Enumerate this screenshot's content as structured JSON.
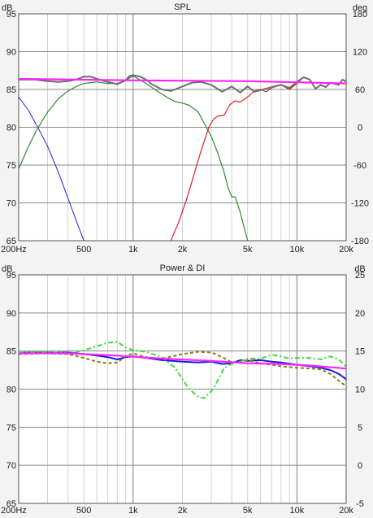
{
  "chart_data": [
    {
      "type": "line",
      "title": "SPL",
      "y_unit_left": "dB",
      "y_unit_right": "deg",
      "x_scale": "log",
      "xlim": [
        200,
        20000
      ],
      "ylim": [
        65,
        95
      ],
      "y2lim": [
        -180,
        180
      ],
      "x_tick_labels": [
        {
          "value": 200,
          "label": "200Hz"
        },
        {
          "value": 500,
          "label": "500"
        },
        {
          "value": 1000,
          "label": "1k"
        },
        {
          "value": 2000,
          "label": "2k"
        },
        {
          "value": 5000,
          "label": "5k"
        },
        {
          "value": 10000,
          "label": "10k"
        },
        {
          "value": 20000,
          "label": "20k"
        }
      ],
      "y_ticks": [
        95,
        90,
        85,
        80,
        75,
        70,
        65
      ],
      "y2_ticks": [
        180,
        120,
        60,
        0,
        -60,
        -120,
        -180
      ],
      "grid": true,
      "series": [
        {
          "color": "#2222dd",
          "width": 1,
          "dash": "",
          "x": [
            200,
            230,
            260,
            300,
            350,
            400,
            450,
            500
          ],
          "y": [
            84,
            82.2,
            80.1,
            77.5,
            74.0,
            70.6,
            67.6,
            65.0
          ]
        },
        {
          "color": "#2e8b2e",
          "width": 1.2,
          "dash": "",
          "x": [
            200,
            230,
            260,
            300,
            350,
            400,
            450,
            500,
            600,
            700,
            800,
            900,
            1000,
            1200,
            1400,
            1600,
            1800,
            2000,
            2200,
            2500,
            2800,
            3000,
            3300,
            3600,
            3800,
            4000,
            4200,
            4500,
            5000
          ],
          "y": [
            74.5,
            77.5,
            79.8,
            82.0,
            83.8,
            84.8,
            85.4,
            85.8,
            86.0,
            85.8,
            85.8,
            86.2,
            86.8,
            85.8,
            84.8,
            84.0,
            83.4,
            83.2,
            82.9,
            82.0,
            80.0,
            78.8,
            76.5,
            74.0,
            72.0,
            70.8,
            70.8,
            68.8,
            65.0
          ]
        },
        {
          "color": "#e02020",
          "width": 1.2,
          "dash": "",
          "x": [
            1700,
            1900,
            2100,
            2300,
            2500,
            2700,
            2900,
            3100,
            3300,
            3600,
            3900,
            4200,
            4500,
            5000,
            5500,
            6000,
            6500,
            7000,
            8000,
            9000,
            10000,
            11000,
            12000,
            13000,
            14000,
            15000,
            16000,
            18000,
            19000,
            20000
          ],
          "y": [
            65.0,
            67.5,
            70.2,
            73.0,
            75.7,
            78.0,
            80.0,
            81.1,
            81.5,
            81.6,
            83.0,
            83.5,
            83.3,
            84.0,
            84.8,
            85.0,
            84.7,
            85.2,
            85.6,
            85.0,
            85.8,
            86.6,
            86.3,
            85.1,
            85.6,
            85.3,
            85.9,
            85.6,
            86.3,
            86.0
          ]
        },
        {
          "color": "#6e6e6e",
          "width": 2,
          "dash": "",
          "x": [
            200,
            250,
            300,
            350,
            400,
            450,
            500,
            550,
            600,
            700,
            800,
            900,
            950,
            1000,
            1100,
            1200,
            1300,
            1500,
            1700,
            2000,
            2300,
            2600,
            3000,
            3500,
            4000,
            4500,
            5000,
            5500,
            6000,
            7000,
            8000,
            9000,
            10000,
            11000,
            12000,
            13000,
            14000,
            15000,
            16000,
            18000,
            19000,
            20000
          ],
          "y": [
            86.3,
            86.3,
            86.1,
            86.0,
            86.1,
            86.3,
            86.7,
            86.7,
            86.4,
            86.0,
            85.7,
            86.2,
            86.8,
            86.9,
            86.7,
            86.3,
            85.7,
            85.0,
            84.8,
            85.4,
            85.9,
            86.0,
            85.6,
            84.7,
            85.4,
            84.6,
            85.4,
            84.7,
            84.9,
            85.3,
            85.6,
            85.2,
            86.0,
            86.6,
            86.3,
            85.1,
            85.6,
            85.3,
            85.9,
            85.6,
            86.3,
            86.0
          ]
        },
        {
          "color": "#ff22ff",
          "width": 2.2,
          "dash": "",
          "x": [
            200,
            1000,
            5000,
            20000
          ],
          "y": [
            86.4,
            86.2,
            86.1,
            85.8
          ]
        }
      ]
    },
    {
      "type": "line",
      "title": "Power & DI",
      "y_unit_left": "dB",
      "y_unit_right": "dB",
      "x_scale": "log",
      "xlim": [
        200,
        20000
      ],
      "ylim": [
        65,
        95
      ],
      "y2lim": [
        -5,
        25
      ],
      "x_tick_labels": [
        {
          "value": 200,
          "label": "200Hz"
        },
        {
          "value": 500,
          "label": "500"
        },
        {
          "value": 1000,
          "label": "1k"
        },
        {
          "value": 2000,
          "label": "2k"
        },
        {
          "value": 5000,
          "label": "5k"
        },
        {
          "value": 10000,
          "label": "10k"
        },
        {
          "value": 20000,
          "label": "20k"
        }
      ],
      "y_ticks": [
        95,
        90,
        85,
        80,
        75,
        70,
        65
      ],
      "y2_ticks": [
        25,
        20,
        15,
        10,
        5,
        0,
        -5
      ],
      "grid": true,
      "series": [
        {
          "color": "#1a1ae0",
          "width": 2,
          "dash": "",
          "x": [
            200,
            300,
            400,
            500,
            600,
            700,
            800,
            900,
            1000,
            1200,
            1500,
            2000,
            2500,
            3000,
            3500,
            4000,
            4500,
            5000,
            6000,
            7000,
            8000,
            10000,
            12000,
            14000,
            16000,
            18000,
            20000
          ],
          "y": [
            84.8,
            84.8,
            84.8,
            84.6,
            84.4,
            84.2,
            83.9,
            84.2,
            84.3,
            84.1,
            83.8,
            83.6,
            83.5,
            83.6,
            83.3,
            83.4,
            83.8,
            83.7,
            83.8,
            83.6,
            83.5,
            83.2,
            83.0,
            82.8,
            82.5,
            82.0,
            81.3
          ]
        },
        {
          "color": "#8b7a1a",
          "width": 2,
          "dash": "4 3",
          "x": [
            200,
            300,
            400,
            500,
            600,
            700,
            800,
            900,
            1000,
            1200,
            1500,
            2000,
            2500,
            3000,
            3500,
            4000,
            4500,
            5000,
            6000,
            7000,
            8000,
            10000,
            12000,
            14000,
            16000,
            18000,
            20000
          ],
          "y": [
            84.6,
            84.7,
            84.6,
            84.1,
            83.6,
            83.4,
            83.5,
            84.3,
            84.7,
            84.2,
            84.0,
            84.6,
            84.9,
            84.8,
            84.2,
            83.5,
            83.6,
            83.8,
            83.4,
            83.2,
            83.0,
            82.8,
            82.7,
            82.6,
            82.0,
            81.1,
            80.4
          ]
        },
        {
          "color": "#3ddc3d",
          "width": 2,
          "dash": "6 3 2 3",
          "x": [
            200,
            300,
            400,
            500,
            600,
            700,
            800,
            900,
            1000,
            1200,
            1500,
            1800,
            2000,
            2200,
            2500,
            2700,
            3000,
            3300,
            3600,
            4000,
            4500,
            5000,
            6000,
            7000,
            8000,
            9000,
            10000,
            12000,
            14000,
            16000,
            18000,
            20000
          ],
          "y": [
            84.8,
            84.9,
            84.7,
            85.1,
            85.6,
            86.1,
            86.2,
            85.5,
            85.1,
            84.9,
            84.2,
            82.8,
            81.3,
            80.0,
            79.0,
            78.8,
            79.7,
            81.2,
            82.8,
            83.3,
            83.6,
            84.0,
            84.0,
            84.5,
            84.3,
            84.0,
            84.1,
            84.1,
            83.9,
            84.3,
            83.9,
            82.9
          ]
        },
        {
          "color": "#ff22ff",
          "width": 2.2,
          "dash": "",
          "x": [
            200,
            400,
            800,
            1500,
            3000,
            5000,
            8000,
            12000,
            20000
          ],
          "y": [
            84.7,
            84.7,
            84.4,
            84.0,
            83.7,
            83.4,
            83.3,
            83.1,
            82.7
          ]
        }
      ]
    }
  ]
}
